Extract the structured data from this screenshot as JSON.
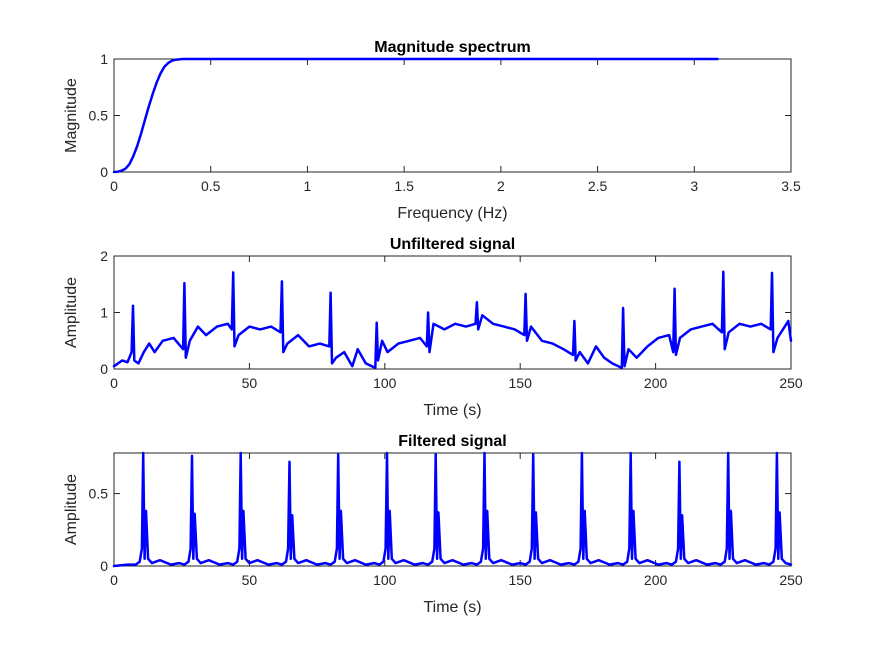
{
  "figure": {
    "background": "#ffffff",
    "axis_color": "#262626"
  },
  "chart_data": [
    {
      "type": "line",
      "title": "Magnitude spectrum",
      "xlabel": "Frequency (Hz)",
      "ylabel": "Magnitude",
      "xlim": [
        0,
        3.5
      ],
      "ylim": [
        0,
        1
      ],
      "xticks": [
        0,
        0.5,
        1,
        1.5,
        2,
        2.5,
        3,
        3.5
      ],
      "xtick_labels": [
        "0",
        "0.5",
        "1",
        "1.5",
        "2",
        "2.5",
        "3",
        "3.5"
      ],
      "yticks": [
        0,
        0.5,
        1
      ],
      "ytick_labels": [
        "0",
        "0.5",
        "1"
      ],
      "grid": false,
      "series": [
        {
          "color": "#0000ff",
          "line_width": 2.5,
          "x": [
            0,
            0.02,
            0.04,
            0.06,
            0.08,
            0.1,
            0.12,
            0.14,
            0.16,
            0.18,
            0.2,
            0.22,
            0.24,
            0.26,
            0.28,
            0.3,
            0.32,
            0.34,
            0.36,
            0.38,
            0.4,
            0.45,
            0.5,
            1,
            1.5,
            2,
            2.5,
            3,
            3.12
          ],
          "y": [
            0,
            0.003,
            0.012,
            0.03,
            0.07,
            0.14,
            0.23,
            0.34,
            0.46,
            0.58,
            0.69,
            0.79,
            0.87,
            0.93,
            0.965,
            0.985,
            0.994,
            0.998,
            1,
            1,
            1,
            1,
            1,
            1,
            1,
            1,
            1,
            1,
            1
          ]
        }
      ]
    },
    {
      "type": "line",
      "title": "Unfiltered signal",
      "xlabel": "Time (s)",
      "ylabel": "Amplitude",
      "xlim": [
        0,
        250
      ],
      "ylim": [
        0,
        2
      ],
      "xticks": [
        0,
        50,
        100,
        150,
        200,
        250
      ],
      "xtick_labels": [
        "0",
        "50",
        "100",
        "150",
        "200",
        "250"
      ],
      "yticks": [
        0,
        1,
        2
      ],
      "ytick_labels": [
        "0",
        "1",
        "2"
      ],
      "grid": false,
      "series": [
        {
          "color": "#0000ff",
          "line_width": 2.5,
          "x": [
            0,
            3,
            5,
            6.5,
            7,
            7.5,
            9,
            11,
            13,
            15,
            18,
            22,
            25.5,
            26,
            26.5,
            28,
            31,
            34,
            38,
            42,
            43.5,
            44,
            44.5,
            46,
            50,
            54,
            58,
            61.5,
            62,
            62.5,
            64,
            68,
            72,
            76,
            79.5,
            80,
            80.5,
            82,
            85,
            88,
            90,
            93,
            96.5,
            97,
            97.5,
            99,
            101,
            105,
            109,
            113,
            115.5,
            116,
            116.5,
            118,
            122,
            126,
            130,
            133.5,
            134,
            134.5,
            136,
            140,
            144,
            148,
            151.5,
            152,
            152.5,
            154,
            158,
            162,
            166,
            169.5,
            170,
            170.5,
            172,
            175,
            178,
            181,
            184,
            187.5,
            188,
            188.5,
            190,
            193,
            197,
            201,
            205,
            206.5,
            207,
            207.5,
            209,
            213,
            217,
            221,
            224.5,
            225,
            225.5,
            227,
            231,
            235,
            239,
            242.5,
            243,
            243.5,
            245,
            249,
            250
          ],
          "y": [
            0.05,
            0.15,
            0.12,
            0.3,
            1.12,
            0.15,
            0.1,
            0.3,
            0.45,
            0.3,
            0.5,
            0.55,
            0.35,
            1.52,
            0.2,
            0.5,
            0.75,
            0.6,
            0.75,
            0.8,
            0.7,
            1.71,
            0.4,
            0.6,
            0.75,
            0.7,
            0.75,
            0.65,
            1.55,
            0.3,
            0.45,
            0.6,
            0.4,
            0.45,
            0.4,
            1.35,
            0.1,
            0.2,
            0.3,
            0.05,
            0.35,
            0.1,
            0.02,
            0.82,
            0.15,
            0.5,
            0.3,
            0.45,
            0.5,
            0.55,
            0.4,
            1.0,
            0.3,
            0.8,
            0.7,
            0.8,
            0.75,
            0.8,
            1.18,
            0.7,
            0.95,
            0.8,
            0.75,
            0.7,
            0.6,
            1.33,
            0.5,
            0.75,
            0.5,
            0.45,
            0.35,
            0.25,
            0.85,
            0.15,
            0.3,
            0.1,
            0.4,
            0.2,
            0.1,
            0.02,
            1.08,
            0.05,
            0.35,
            0.2,
            0.4,
            0.55,
            0.6,
            0.3,
            1.42,
            0.25,
            0.55,
            0.7,
            0.75,
            0.8,
            0.65,
            1.72,
            0.35,
            0.65,
            0.8,
            0.75,
            0.8,
            0.7,
            1.7,
            0.3,
            0.55,
            0.85,
            0.5
          ]
        }
      ]
    },
    {
      "type": "line",
      "title": "Filtered signal",
      "xlabel": "Time (s)",
      "ylabel": "Amplitude",
      "xlim": [
        0,
        250
      ],
      "ylim": [
        0,
        0.78
      ],
      "xticks": [
        0,
        50,
        100,
        150,
        200,
        250
      ],
      "xtick_labels": [
        "0",
        "50",
        "100",
        "150",
        "200",
        "250"
      ],
      "yticks": [
        0,
        0.5
      ],
      "ytick_labels": [
        "0",
        "0.5"
      ],
      "grid": false,
      "series": [
        {
          "color": "#0000ff",
          "line_width": 2.5,
          "x": [
            0,
            5,
            8,
            9.5,
            10.3,
            10.8,
            11.3,
            11.8,
            12.6,
            14,
            17,
            21,
            24,
            26,
            27.5,
            28.3,
            28.8,
            29.3,
            29.8,
            30.6,
            32,
            35,
            39,
            42,
            44,
            45.5,
            46.3,
            46.8,
            47.3,
            47.8,
            48.6,
            50,
            53,
            57,
            60,
            62,
            63.5,
            64.3,
            64.8,
            65.3,
            65.8,
            66.6,
            68,
            71,
            75,
            78,
            80,
            81.5,
            82.3,
            82.8,
            83.3,
            83.8,
            84.6,
            86,
            89,
            93,
            96,
            98,
            99.5,
            100.3,
            100.8,
            101.3,
            101.8,
            102.6,
            104,
            107,
            111,
            114,
            116,
            117.5,
            118.3,
            118.8,
            119.3,
            119.8,
            120.6,
            122,
            125,
            129,
            132,
            134,
            135.5,
            136.3,
            136.8,
            137.3,
            137.8,
            138.6,
            140,
            143,
            147,
            150,
            152,
            153.5,
            154.3,
            154.8,
            155.3,
            155.8,
            156.6,
            158,
            161,
            165,
            168,
            170,
            171.5,
            172.3,
            172.8,
            173.3,
            173.8,
            174.6,
            176,
            179,
            183,
            186,
            188,
            189.5,
            190.3,
            190.8,
            191.3,
            191.8,
            192.6,
            194,
            197,
            201,
            204,
            206,
            207.5,
            208.3,
            208.8,
            209.3,
            209.8,
            210.6,
            212,
            215,
            219,
            222,
            224,
            225.5,
            226.3,
            226.8,
            227.3,
            227.8,
            228.6,
            230,
            233,
            237,
            240,
            242,
            243.5,
            244.3,
            244.8,
            245.3,
            245.8,
            246.6,
            248,
            250
          ],
          "y": [
            0,
            0.01,
            0.01,
            0.03,
            0.12,
            0.78,
            0.05,
            0.38,
            0.05,
            0.02,
            0.04,
            0.01,
            0.02,
            0.01,
            0.03,
            0.12,
            0.76,
            0.05,
            0.36,
            0.05,
            0.02,
            0.04,
            0.01,
            0.02,
            0.01,
            0.03,
            0.12,
            0.78,
            0.05,
            0.38,
            0.05,
            0.02,
            0.04,
            0.01,
            0.02,
            0.01,
            0.03,
            0.12,
            0.72,
            0.05,
            0.35,
            0.05,
            0.02,
            0.04,
            0.01,
            0.02,
            0.01,
            0.03,
            0.12,
            0.77,
            0.05,
            0.38,
            0.05,
            0.02,
            0.04,
            0.01,
            0.02,
            0.01,
            0.03,
            0.12,
            0.78,
            0.05,
            0.38,
            0.05,
            0.02,
            0.04,
            0.01,
            0.02,
            0.01,
            0.03,
            0.12,
            0.77,
            0.05,
            0.37,
            0.05,
            0.02,
            0.04,
            0.01,
            0.02,
            0.01,
            0.03,
            0.12,
            0.78,
            0.05,
            0.38,
            0.05,
            0.02,
            0.04,
            0.01,
            0.02,
            0.01,
            0.03,
            0.12,
            0.77,
            0.05,
            0.37,
            0.05,
            0.02,
            0.04,
            0.01,
            0.02,
            0.01,
            0.03,
            0.12,
            0.78,
            0.05,
            0.38,
            0.05,
            0.02,
            0.04,
            0.01,
            0.02,
            0.01,
            0.03,
            0.12,
            0.78,
            0.05,
            0.38,
            0.05,
            0.02,
            0.04,
            0.01,
            0.02,
            0.01,
            0.03,
            0.12,
            0.72,
            0.05,
            0.35,
            0.05,
            0.02,
            0.04,
            0.01,
            0.02,
            0.01,
            0.03,
            0.12,
            0.78,
            0.05,
            0.38,
            0.05,
            0.02,
            0.04,
            0.01,
            0.02,
            0.01,
            0.03,
            0.12,
            0.78,
            0.05,
            0.37,
            0.05,
            0.02,
            0.01
          ]
        }
      ]
    }
  ]
}
